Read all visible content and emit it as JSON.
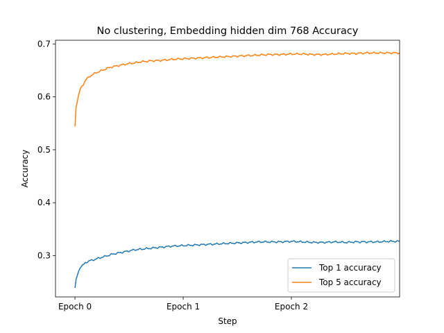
{
  "chart_data": {
    "type": "line",
    "title": "No clustering, Embedding hidden dim 768 Accuracy",
    "xlabel": "Step",
    "ylabel": "Accuracy",
    "xlim": [
      -0.18,
      3.0
    ],
    "ylim": [
      0.222,
      0.707
    ],
    "x_ticks": [
      {
        "value": 0,
        "label": "Epoch 0"
      },
      {
        "value": 1,
        "label": "Epoch 1"
      },
      {
        "value": 2,
        "label": "Epoch 2"
      }
    ],
    "y_ticks": [
      0.3,
      0.4,
      0.5,
      0.6,
      0.7
    ],
    "legend_position": "bottom-right",
    "x": [
      0.0,
      0.01,
      0.03,
      0.05,
      0.08,
      0.1,
      0.13,
      0.17,
      0.2,
      0.25,
      0.3,
      0.35,
      0.4,
      0.45,
      0.5,
      0.55,
      0.6,
      0.7,
      0.8,
      0.9,
      1.0,
      1.1,
      1.2,
      1.3,
      1.4,
      1.5,
      1.6,
      1.7,
      1.8,
      1.9,
      2.0,
      2.1,
      2.2,
      2.3,
      2.4,
      2.5,
      2.6,
      2.7,
      2.8,
      2.9,
      3.0
    ],
    "series": [
      {
        "name": "Top 1 accuracy",
        "color": "#1f77b4",
        "values": [
          0.239,
          0.255,
          0.268,
          0.279,
          0.283,
          0.287,
          0.29,
          0.292,
          0.294,
          0.297,
          0.3,
          0.303,
          0.305,
          0.307,
          0.309,
          0.311,
          0.312,
          0.314,
          0.316,
          0.318,
          0.319,
          0.32,
          0.321,
          0.322,
          0.323,
          0.324,
          0.325,
          0.326,
          0.326,
          0.326,
          0.327,
          0.326,
          0.325,
          0.325,
          0.326,
          0.325,
          0.326,
          0.326,
          0.326,
          0.327,
          0.327
        ]
      },
      {
        "name": "Top 5 accuracy",
        "color": "#ff7f0e",
        "values": [
          0.544,
          0.58,
          0.6,
          0.615,
          0.625,
          0.632,
          0.638,
          0.643,
          0.646,
          0.65,
          0.654,
          0.657,
          0.659,
          0.661,
          0.663,
          0.664,
          0.666,
          0.668,
          0.669,
          0.671,
          0.672,
          0.673,
          0.674,
          0.675,
          0.676,
          0.677,
          0.678,
          0.679,
          0.68,
          0.68,
          0.681,
          0.681,
          0.68,
          0.68,
          0.681,
          0.682,
          0.682,
          0.683,
          0.683,
          0.683,
          0.683
        ]
      }
    ]
  }
}
